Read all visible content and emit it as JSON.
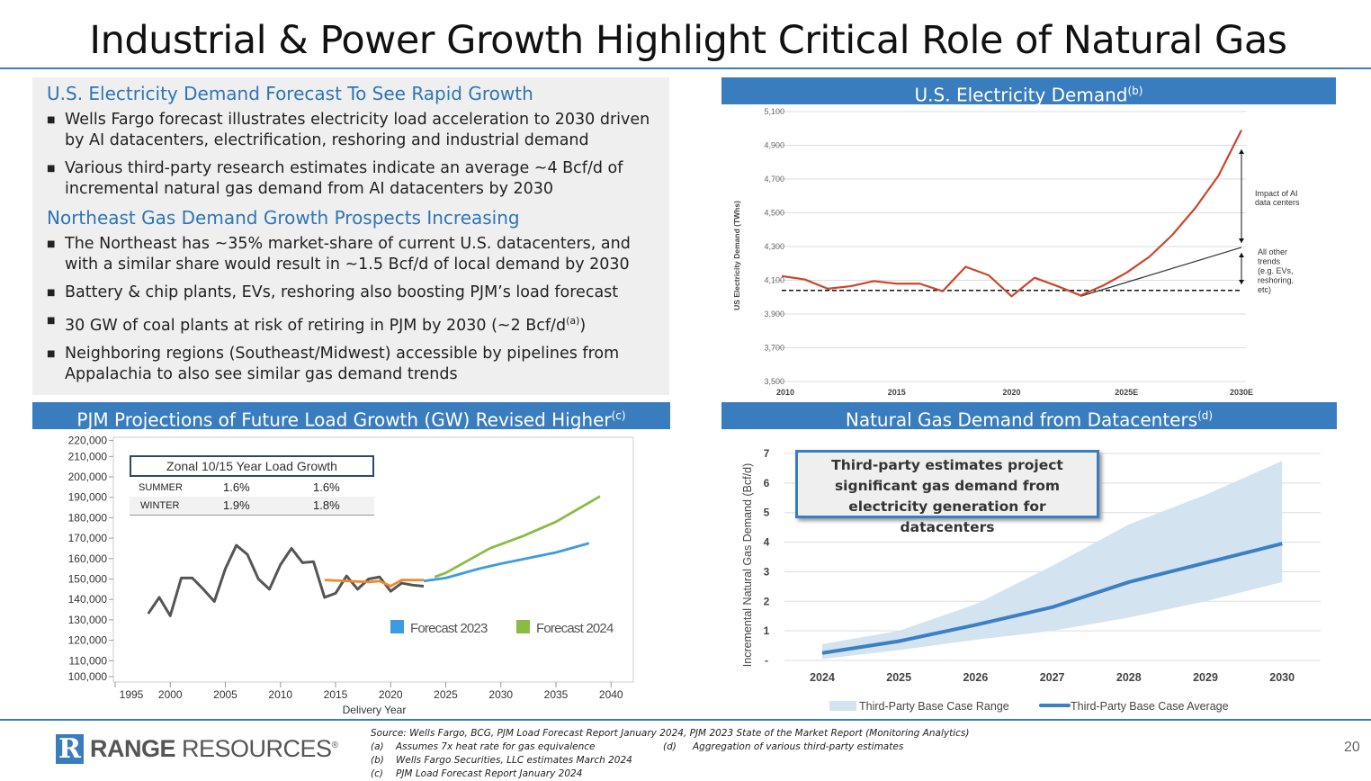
{
  "title": "Industrial & Power Growth Highlight Critical Role of Natural Gas",
  "left": {
    "heading1": "U.S. Electricity Demand Forecast To See Rapid Growth",
    "bullets1": [
      "Wells Fargo forecast illustrates electricity load acceleration to 2030 driven by AI datacenters, electrification, reshoring and industrial demand",
      "Various third-party research estimates indicate an average ~4 Bcf/d of incremental natural gas demand from AI datacenters by 2030"
    ],
    "heading2": "Northeast Gas Demand Growth Prospects Increasing",
    "bullets2": [
      "The Northeast has ~35% market-share of current U.S. datacenters, and with a similar share would result in ~1.5 Bcf/d of local demand by 2030",
      "Battery & chip plants, EVs, reshoring also boosting PJM’s load forecast",
      "30 GW of coal plants at risk of retiring in PJM by 2030 (~2 Bcf/d",
      "Neighboring regions (Southeast/Midwest) accessible by pipelines from Appalachia to also see similar gas demand trends"
    ],
    "bullet_sup": "(a)",
    "bullet_close": ")"
  },
  "panels": {
    "elec": {
      "title": "U.S. Electricity Demand",
      "sup": "(b)"
    },
    "pjm": {
      "title": "PJM Projections of Future Load Growth (GW) Revised Higher",
      "sup": "(c)"
    },
    "gas": {
      "title": "Natural Gas Demand from Datacenters",
      "sup": "(d)"
    }
  },
  "chart_data": [
    {
      "type": "line",
      "ylabel": "US Electricity Demand (TWhs)",
      "ylim": [
        3500,
        5100
      ],
      "yticks": [
        "3,500",
        "3,700",
        "3,900",
        "4,100",
        "4,300",
        "4,500",
        "4,700",
        "4,900",
        "5,100"
      ],
      "xticks": [
        "2010",
        "2015",
        "2020",
        "2025E",
        "2030E"
      ],
      "x": [
        2010,
        2011,
        2012,
        2013,
        2014,
        2015,
        2016,
        2017,
        2018,
        2019,
        2020,
        2021,
        2022,
        2023,
        2024,
        2025,
        2026,
        2027,
        2028,
        2029,
        2030
      ],
      "series": [
        {
          "values": [
            4125,
            4105,
            4050,
            4065,
            4095,
            4080,
            4080,
            4035,
            4180,
            4130,
            4005,
            4115,
            4065,
            4010,
            4070,
            4145,
            4240,
            4370,
            4530,
            4720,
            4990
          ],
          "color": "#c8472d"
        },
        {
          "x": [
            2023,
            2030
          ],
          "values": [
            4005,
            4295
          ],
          "color": "#333333"
        }
      ],
      "baseline": 4040,
      "annotations": [
        "Impact of AI data centers",
        "All other trends (e.g. EVs, reshoring, etc)"
      ]
    },
    {
      "type": "line",
      "xlabel": "Delivery Year",
      "xlim": [
        1995,
        2040
      ],
      "yticks": [
        "100,000",
        "110,000",
        "120,000",
        "130,000",
        "140,000",
        "150,000",
        "160,000",
        "170,000",
        "180,000",
        "190,000",
        "200,000",
        "210,000",
        "220,000"
      ],
      "xticks": [
        "1995",
        "2000",
        "2005",
        "2010",
        "2015",
        "2020",
        "2025",
        "2030",
        "2035",
        "2040"
      ],
      "series": [
        {
          "name": "",
          "color": "#555555",
          "x": [
            1998,
            1999,
            2000,
            2001,
            2002,
            2003,
            2004,
            2005,
            2006,
            2007,
            2008,
            2009,
            2010,
            2011,
            2012,
            2013,
            2014,
            2015,
            2016,
            2017,
            2018,
            2019,
            2020,
            2021,
            2022,
            2023
          ],
          "values": [
            133000,
            141000,
            132000,
            150500,
            150500,
            145000,
            139000,
            155000,
            166500,
            162000,
            150000,
            145000,
            157000,
            165000,
            158000,
            158500,
            141000,
            143000,
            151500,
            145000,
            150000,
            151000,
            144000,
            148000,
            147000,
            146500
          ]
        },
        {
          "name": "",
          "color": "#f0882a",
          "x": [
            2014,
            2016,
            2018,
            2019,
            2020,
            2021,
            2023
          ],
          "values": [
            149500,
            149000,
            148500,
            149000,
            146500,
            149500,
            149500
          ]
        },
        {
          "name": "Forecast 2023",
          "color": "#3d9be0",
          "x": [
            2023,
            2025,
            2028,
            2030,
            2035,
            2038
          ],
          "values": [
            149000,
            150500,
            155000,
            157500,
            163000,
            167500
          ]
        },
        {
          "name": "Forecast 2024",
          "color": "#8cbb45",
          "x": [
            2024,
            2025,
            2027,
            2029,
            2032,
            2035,
            2039
          ],
          "values": [
            151000,
            153000,
            159000,
            165000,
            171000,
            178000,
            190500
          ]
        }
      ],
      "table": {
        "title": "Zonal 10/15 Year Load Growth",
        "rows": [
          [
            "SUMMER",
            "1.6%",
            "1.6%"
          ],
          [
            "WINTER",
            "1.9%",
            "1.8%"
          ]
        ]
      }
    },
    {
      "type": "area",
      "ylabel": "Incremental Natural Gas Demand (Bcf/d)",
      "ylim": [
        0,
        7
      ],
      "yticks": [
        "-",
        "1",
        "2",
        "3",
        "4",
        "5",
        "6",
        "7"
      ],
      "categories": [
        "2024",
        "2025",
        "2026",
        "2027",
        "2028",
        "2029",
        "2030"
      ],
      "series": [
        {
          "name": "Third-Party Base Case Range",
          "low": [
            0.05,
            0.35,
            0.7,
            1.0,
            1.45,
            2.0,
            2.65
          ],
          "high": [
            0.55,
            1.0,
            1.9,
            3.2,
            4.6,
            5.6,
            6.75
          ],
          "color": "#d3e3f0"
        },
        {
          "name": "Third-Party Base Case Average",
          "values": [
            0.25,
            0.65,
            1.2,
            1.8,
            2.65,
            3.3,
            3.95
          ],
          "color": "#3b7fc4"
        }
      ],
      "callout": "Third-party estimates project significant gas demand from electricity generation for datacenters"
    }
  ],
  "footer": {
    "logo": "RANGE RESOURCES",
    "source": "Source: Wells Fargo, BCG, PJM Load Forecast Report January 2024, PJM 2023 State of the Market Report (Monitoring Analytics)",
    "notes": [
      [
        "(a)",
        "Assumes 7x heat rate for gas equivalence"
      ],
      [
        "(b)",
        "Wells Fargo Securities, LLC estimates March 2024"
      ],
      [
        "(c)",
        "PJM Load Forecast Report January 2024"
      ]
    ],
    "note_d": [
      "(d)",
      "Aggregation of various third-party estimates"
    ],
    "page": "20"
  }
}
